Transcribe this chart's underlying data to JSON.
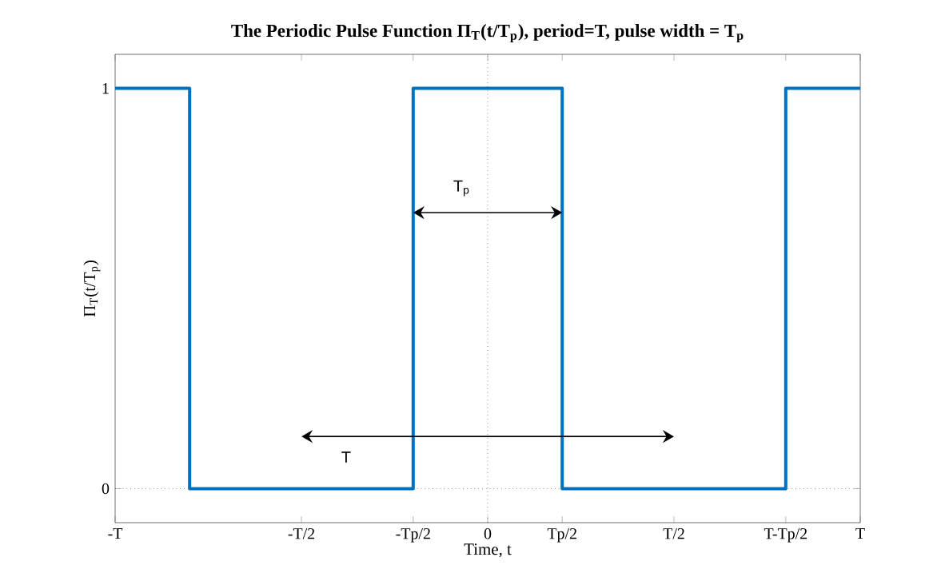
{
  "chart_data": {
    "type": "step",
    "title": "The Periodic Pulse Function Π$_{T}$(t/T$_{p}$), period=T,  pulse width = T$_{p}$",
    "xlabel": "Time, t",
    "ylabel": "Π$_{T}$(t/T$_{p}$)",
    "categories": [
      "-T",
      null,
      null,
      null,
      null,
      "-T/2",
      null,
      null,
      "-Tp/2",
      null,
      "0",
      null,
      "Tp/2",
      null,
      null,
      "T/2",
      null,
      null,
      "T-Tp/2",
      null,
      "T"
    ],
    "series": [
      {
        "color": "#0072bd",
        "values": [
          1,
          1,
          0,
          0,
          0,
          0,
          0,
          0,
          1,
          1,
          1,
          1,
          0,
          0,
          0,
          0,
          0,
          0,
          1,
          1,
          1
        ]
      }
    ],
    "ylim": [
      -0.085,
      1.085
    ],
    "yticks": [
      0,
      1
    ],
    "ref_lines": [
      {
        "axis": "y",
        "value": 0,
        "line_style": "dotted"
      },
      {
        "axis": "x",
        "value": "0",
        "line_style": "dotted"
      }
    ],
    "annotations": [
      "T$_{p}$",
      "T"
    ]
  }
}
